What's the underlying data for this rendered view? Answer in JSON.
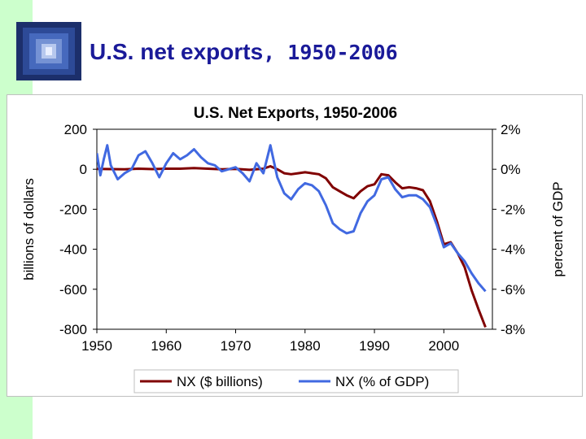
{
  "slide": {
    "title_main": "U.S. net exports",
    "title_years": ", 1950-2006",
    "colors": {
      "side_bar": "#ccffcc",
      "title": "#1a1a99"
    },
    "logo_icon": "blue-square-tunnel-icon"
  },
  "chart_data": {
    "type": "line",
    "title": "U.S. Net Exports, 1950-2006",
    "xlabel": "",
    "ylabel": "billions of dollars",
    "y2label": "percent of GDP",
    "xlim": [
      1950,
      2007
    ],
    "ylim": [
      -800,
      200
    ],
    "y2lim": [
      -8,
      2
    ],
    "x_ticks": [
      "1950",
      "1960",
      "1970",
      "1980",
      "1990",
      "2000"
    ],
    "y_ticks": [
      "200",
      "0",
      "-200",
      "-400",
      "-600",
      "-800"
    ],
    "y2_ticks": [
      "2%",
      "0%",
      "-2%",
      "-4%",
      "-6%",
      "-8%"
    ],
    "legend_position": "bottom",
    "grid": false,
    "series": [
      {
        "name": "NX ($ billions)",
        "axis": "left",
        "color": "#800000",
        "points": [
          [
            1950,
            2
          ],
          [
            1952,
            1
          ],
          [
            1954,
            0
          ],
          [
            1956,
            3
          ],
          [
            1958,
            1
          ],
          [
            1960,
            3
          ],
          [
            1962,
            3
          ],
          [
            1964,
            6
          ],
          [
            1966,
            3
          ],
          [
            1968,
            0
          ],
          [
            1970,
            2
          ],
          [
            1972,
            -3
          ],
          [
            1974,
            3
          ],
          [
            1975,
            15
          ],
          [
            1976,
            0
          ],
          [
            1977,
            -20
          ],
          [
            1978,
            -25
          ],
          [
            1979,
            -20
          ],
          [
            1980,
            -15
          ],
          [
            1981,
            -20
          ],
          [
            1982,
            -25
          ],
          [
            1983,
            -45
          ],
          [
            1984,
            -90
          ],
          [
            1985,
            -110
          ],
          [
            1986,
            -130
          ],
          [
            1987,
            -145
          ],
          [
            1988,
            -110
          ],
          [
            1989,
            -85
          ],
          [
            1990,
            -75
          ],
          [
            1991,
            -25
          ],
          [
            1992,
            -30
          ],
          [
            1993,
            -65
          ],
          [
            1994,
            -95
          ],
          [
            1995,
            -90
          ],
          [
            1996,
            -95
          ],
          [
            1997,
            -105
          ],
          [
            1998,
            -160
          ],
          [
            1999,
            -260
          ],
          [
            2000,
            -375
          ],
          [
            2001,
            -365
          ],
          [
            2002,
            -420
          ],
          [
            2003,
            -490
          ],
          [
            2004,
            -605
          ],
          [
            2005,
            -700
          ],
          [
            2006,
            -790
          ]
        ]
      },
      {
        "name": "NX (% of GDP)",
        "axis": "right",
        "color": "#4169e1",
        "points": [
          [
            1950,
            0.8
          ],
          [
            1950.5,
            -0.3
          ],
          [
            1951,
            0.5
          ],
          [
            1951.5,
            1.2
          ],
          [
            1952,
            0.2
          ],
          [
            1953,
            -0.5
          ],
          [
            1954,
            -0.2
          ],
          [
            1955,
            0.0
          ],
          [
            1956,
            0.7
          ],
          [
            1957,
            0.9
          ],
          [
            1958,
            0.3
          ],
          [
            1959,
            -0.4
          ],
          [
            1960,
            0.3
          ],
          [
            1961,
            0.8
          ],
          [
            1962,
            0.5
          ],
          [
            1963,
            0.7
          ],
          [
            1964,
            1.0
          ],
          [
            1965,
            0.6
          ],
          [
            1966,
            0.3
          ],
          [
            1967,
            0.2
          ],
          [
            1968,
            -0.1
          ],
          [
            1969,
            0.0
          ],
          [
            1970,
            0.1
          ],
          [
            1971,
            -0.2
          ],
          [
            1972,
            -0.6
          ],
          [
            1973,
            0.3
          ],
          [
            1974,
            -0.2
          ],
          [
            1975,
            1.2
          ],
          [
            1976,
            -0.4
          ],
          [
            1977,
            -1.2
          ],
          [
            1978,
            -1.5
          ],
          [
            1979,
            -1.0
          ],
          [
            1980,
            -0.7
          ],
          [
            1981,
            -0.8
          ],
          [
            1982,
            -1.1
          ],
          [
            1983,
            -1.8
          ],
          [
            1984,
            -2.7
          ],
          [
            1985,
            -3.0
          ],
          [
            1986,
            -3.2
          ],
          [
            1987,
            -3.1
          ],
          [
            1988,
            -2.2
          ],
          [
            1989,
            -1.6
          ],
          [
            1990,
            -1.3
          ],
          [
            1991,
            -0.5
          ],
          [
            1992,
            -0.4
          ],
          [
            1993,
            -1.0
          ],
          [
            1994,
            -1.4
          ],
          [
            1995,
            -1.3
          ],
          [
            1996,
            -1.3
          ],
          [
            1997,
            -1.5
          ],
          [
            1998,
            -1.9
          ],
          [
            1999,
            -2.8
          ],
          [
            2000,
            -3.9
          ],
          [
            2001,
            -3.7
          ],
          [
            2002,
            -4.2
          ],
          [
            2003,
            -4.6
          ],
          [
            2004,
            -5.2
          ],
          [
            2005,
            -5.7
          ],
          [
            2006,
            -6.1
          ]
        ]
      }
    ]
  }
}
